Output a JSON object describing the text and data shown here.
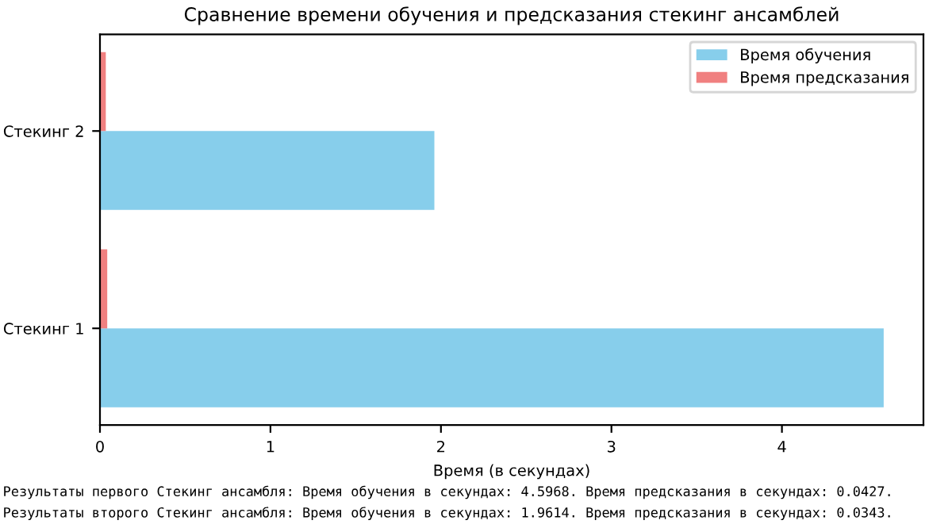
{
  "chart_data": {
    "type": "bar",
    "orientation": "horizontal",
    "title": "Сравнение времени обучения и предсказания стекинг ансамблей",
    "xlabel": "Время (в секундах)",
    "categories": [
      "Стекинг 2",
      "Стекинг 1"
    ],
    "series": [
      {
        "name": "Время обучения",
        "color": "#87ceeb",
        "values": [
          1.9614,
          4.5968
        ]
      },
      {
        "name": "Время предсказания",
        "color": "#f08080",
        "values": [
          0.0343,
          0.0427
        ]
      }
    ],
    "xlim": [
      0,
      4.83
    ],
    "xticks": [
      0,
      1,
      2,
      3,
      4
    ],
    "grid": false,
    "legend": "top right",
    "annotations": [
      "Результаты первого Стекинг ансамбля: Время обучения в секундах: 4.5968. Время предсказания в секундах: 0.0427.",
      "Результаты второго Стекинг ансамбля: Время обучения в секундах: 1.9614. Время предсказания в секундах: 0.0343."
    ]
  }
}
